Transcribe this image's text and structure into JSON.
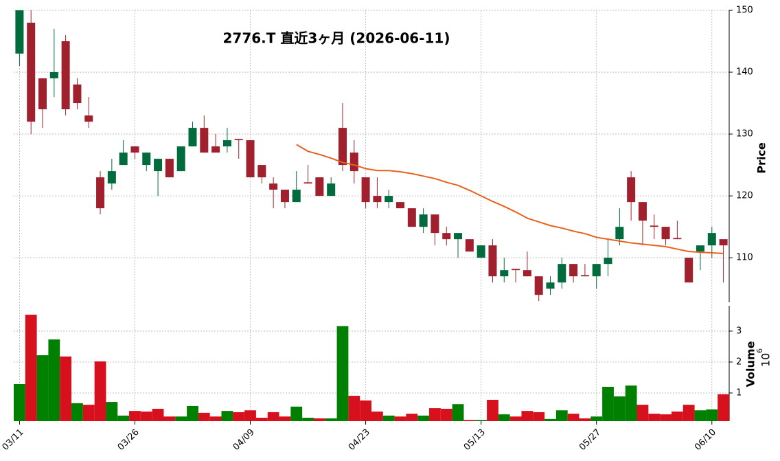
{
  "chart_data": {
    "type": "candlestick",
    "title": "2776.T  直近3ヶ月  (2026-06-11)",
    "categories": [
      "03/11",
      null,
      null,
      null,
      null,
      null,
      null,
      null,
      null,
      null,
      "03/26",
      null,
      null,
      null,
      null,
      null,
      null,
      null,
      null,
      null,
      "04/09",
      null,
      null,
      null,
      null,
      null,
      null,
      null,
      null,
      null,
      "04/23",
      null,
      null,
      null,
      null,
      null,
      null,
      null,
      null,
      null,
      "05/13",
      null,
      null,
      null,
      null,
      null,
      null,
      null,
      null,
      null,
      "05/27",
      null,
      null,
      null,
      null,
      null,
      null,
      null,
      null,
      null,
      "06/10",
      null
    ],
    "open": [
      143,
      148,
      139,
      139,
      145,
      138,
      133,
      123,
      122,
      125,
      128,
      125,
      124,
      126,
      124,
      128,
      131,
      128,
      128,
      129.2,
      129,
      125,
      122,
      121,
      119,
      122.2,
      123,
      120,
      131,
      127,
      123,
      120,
      119,
      119,
      118,
      115,
      117,
      114,
      113,
      113,
      110,
      112,
      107,
      108.2,
      108,
      107,
      105,
      106,
      109,
      107.2,
      107,
      109,
      113,
      123,
      119,
      115.2,
      115,
      113.2,
      110,
      111,
      112,
      113
    ],
    "high": [
      150,
      150,
      139,
      147,
      146,
      139,
      136,
      124,
      126,
      129,
      128,
      127,
      126,
      126,
      128,
      132,
      133,
      130,
      131,
      129.2,
      129,
      125,
      123,
      121,
      124,
      125,
      123,
      123,
      135,
      129,
      123,
      123,
      121,
      119,
      118,
      118,
      117,
      115,
      114,
      113,
      112,
      113,
      110,
      108.2,
      111,
      107,
      107,
      110,
      109,
      109,
      109,
      113,
      118,
      124,
      119,
      117,
      115,
      116,
      110,
      112,
      115,
      113
    ],
    "low": [
      141,
      130,
      131,
      136,
      133,
      134,
      131,
      117,
      121,
      125,
      126,
      124,
      120,
      123,
      124,
      128,
      127,
      127,
      127,
      126,
      123,
      122,
      118,
      118,
      119,
      122,
      120,
      120,
      124,
      122,
      118,
      118,
      118,
      118,
      115,
      114,
      112,
      112,
      110,
      111,
      110,
      106,
      106,
      106,
      107,
      103,
      104,
      105,
      106,
      107,
      105,
      107,
      112,
      116,
      112,
      113,
      112,
      113,
      106,
      108,
      110,
      106
    ],
    "close": [
      150,
      132,
      134,
      140,
      134,
      135,
      132,
      118,
      124,
      127,
      127,
      127,
      126,
      123,
      128,
      131,
      127,
      127,
      129,
      129,
      123,
      123,
      121,
      119,
      121,
      122,
      120,
      122,
      125,
      124,
      119,
      119,
      120,
      118,
      115,
      117,
      114,
      113,
      114,
      111,
      112,
      107,
      108,
      108,
      107,
      104,
      106,
      109,
      107,
      107,
      109,
      110,
      115,
      119,
      116,
      115,
      113,
      113,
      106,
      112,
      114,
      112
    ],
    "up_color": "#006b3c",
    "down_color": "#a0202e",
    "ma": {
      "color": "#e8601c",
      "values": [
        null,
        null,
        null,
        null,
        null,
        null,
        null,
        null,
        null,
        null,
        null,
        null,
        null,
        null,
        null,
        null,
        null,
        null,
        null,
        null,
        null,
        null,
        null,
        null,
        128.3,
        127.2,
        126.7,
        126.1,
        125.4,
        125,
        124.4,
        124.1,
        124.1,
        123.9,
        123.6,
        123.2,
        122.8,
        122.2,
        121.7,
        120.9,
        120,
        119.1,
        118.3,
        117.4,
        116.4,
        115.8,
        115.2,
        114.8,
        114.3,
        113.9,
        113.3,
        113,
        112.7,
        112.4,
        112.2,
        112,
        111.8,
        111.4,
        111,
        110.9,
        110.8,
        110.7
      ]
    },
    "ylabel": "Price",
    "ylim": [
      102.8,
      150
    ],
    "yticks": [
      110,
      120,
      130,
      140,
      150
    ],
    "grid": true,
    "volume": {
      "ylabel": "Volume",
      "scale_base": "10",
      "scale_exponent": "6",
      "values": [
        1.29,
        3.53,
        2.22,
        2.73,
        2.18,
        0.67,
        0.62,
        2.02,
        0.71,
        0.27,
        0.42,
        0.4,
        0.49,
        0.24,
        0.24,
        0.58,
        0.36,
        0.24,
        0.42,
        0.38,
        0.44,
        0.2,
        0.38,
        0.24,
        0.56,
        0.2,
        0.18,
        0.18,
        3.16,
        0.91,
        0.76,
        0.4,
        0.27,
        0.24,
        0.33,
        0.27,
        0.51,
        0.49,
        0.64,
        0.13,
        0.13,
        0.78,
        0.31,
        0.24,
        0.42,
        0.38,
        0.16,
        0.44,
        0.33,
        0.18,
        0.24,
        1.2,
        0.89,
        1.24,
        0.62,
        0.33,
        0.31,
        0.4,
        0.62,
        0.44,
        0.47,
        0.96
      ],
      "up_color": "#008000",
      "down_color": "#d7101e",
      "ylim": [
        0.09,
        3.82
      ],
      "yticks": [
        1,
        2,
        3
      ]
    }
  }
}
